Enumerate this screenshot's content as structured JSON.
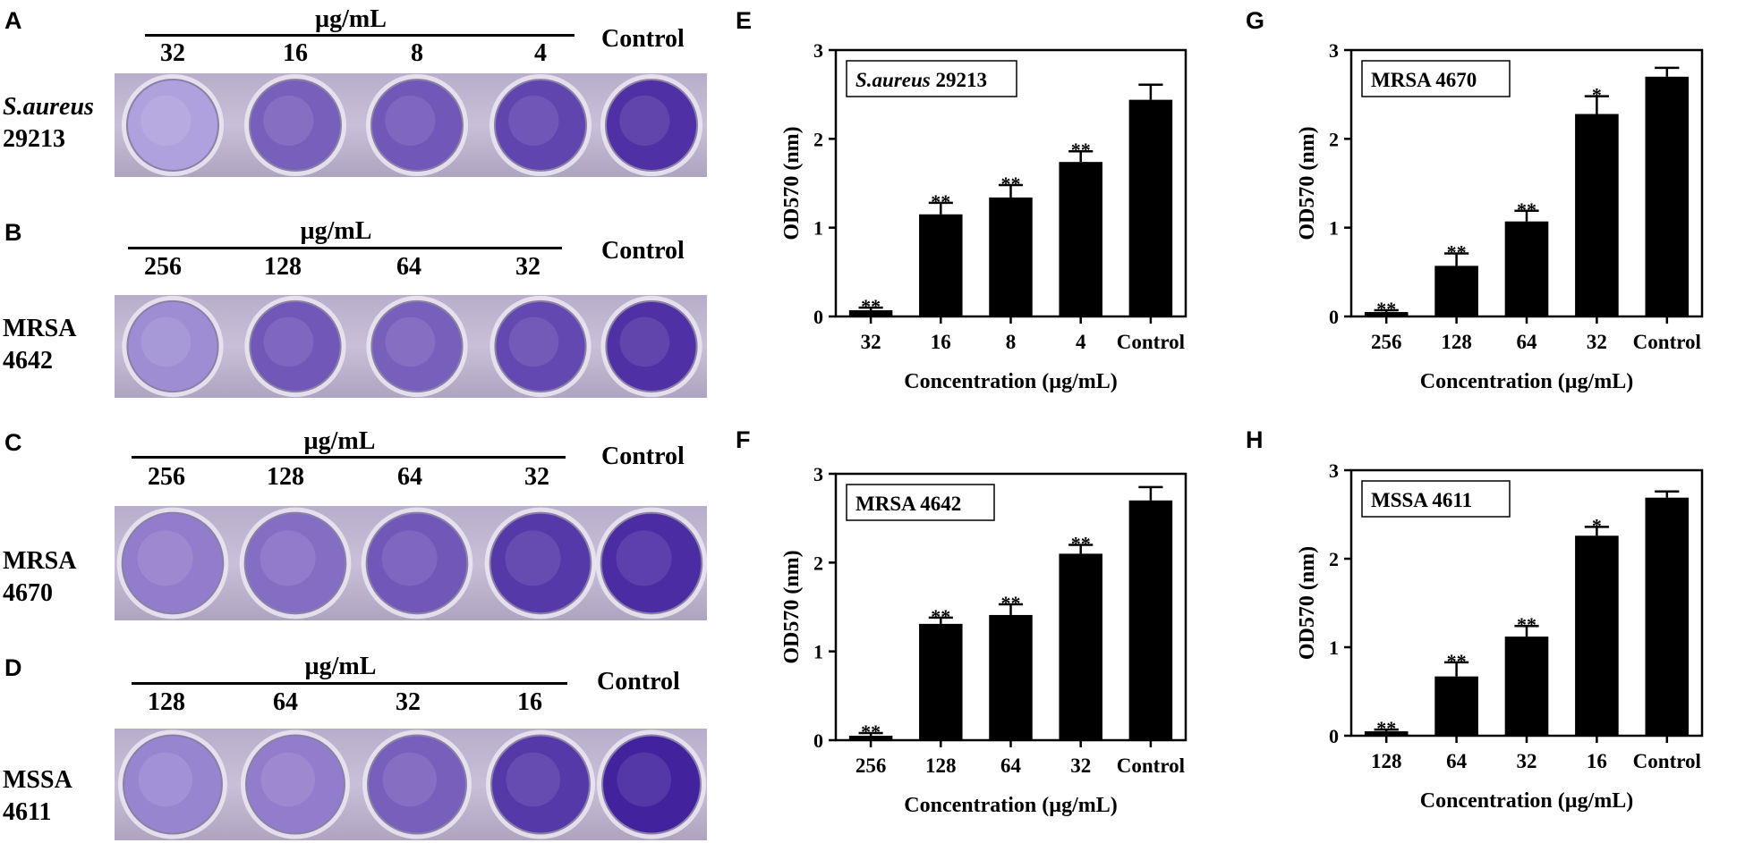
{
  "panels": [
    {
      "letter": "A",
      "unit": "µg/mL",
      "concentrations": [
        "32",
        "16",
        "8",
        "4"
      ],
      "control": "Control",
      "strain_lines": [
        "S.aureus",
        "29213"
      ],
      "strain_italic_first": true,
      "well_intensity": [
        0.12,
        0.55,
        0.6,
        0.72,
        0.85
      ]
    },
    {
      "letter": "B",
      "unit": "µg/mL",
      "concentrations": [
        "256",
        "128",
        "64",
        "32"
      ],
      "control": "Control",
      "strain_lines": [
        "MRSA",
        "4642"
      ],
      "strain_italic_first": false,
      "well_intensity": [
        0.25,
        0.6,
        0.55,
        0.7,
        0.85
      ]
    },
    {
      "letter": "C",
      "unit": "µg/mL",
      "concentrations": [
        "256",
        "128",
        "64",
        "32"
      ],
      "control": "Control",
      "strain_lines": [
        "MRSA",
        "4670"
      ],
      "strain_italic_first": false,
      "well_intensity": [
        0.35,
        0.45,
        0.6,
        0.8,
        0.88
      ]
    },
    {
      "letter": "D",
      "unit": "µg/mL",
      "concentrations": [
        "128",
        "64",
        "32",
        "16"
      ],
      "control": "Control",
      "strain_lines": [
        "MSSA",
        "4611"
      ],
      "strain_italic_first": false,
      "well_intensity": [
        0.3,
        0.35,
        0.55,
        0.8,
        0.95
      ]
    }
  ],
  "colors": {
    "plate_bg": "#c9bfd8",
    "stain_light": "#bfb3e6",
    "stain_dark": "#3c1a9a",
    "bar": "#000000"
  },
  "chart_data": [
    {
      "letter": "E",
      "type": "bar",
      "legend": "S.aureus 29213",
      "legend_italic": "S.aureus",
      "legend_rest": " 29213",
      "categories": [
        "32",
        "16",
        "8",
        "4",
        "Control"
      ],
      "values": [
        0.07,
        1.15,
        1.34,
        1.74,
        2.44
      ],
      "errors": [
        0.03,
        0.13,
        0.14,
        0.12,
        0.17
      ],
      "significance": [
        "**",
        "**",
        "**",
        "**",
        ""
      ],
      "xlabel": "Concentration (µg/mL)",
      "ylabel": "OD570 (nm)",
      "ylim": [
        0,
        3
      ],
      "yticks": [
        "0",
        "1",
        "2",
        "3"
      ]
    },
    {
      "letter": "F",
      "type": "bar",
      "legend": "MRSA 4642",
      "legend_italic": "",
      "legend_rest": "MRSA 4642",
      "categories": [
        "256",
        "128",
        "64",
        "32",
        "Control"
      ],
      "values": [
        0.05,
        1.31,
        1.41,
        2.1,
        2.7
      ],
      "errors": [
        0.03,
        0.07,
        0.12,
        0.1,
        0.15
      ],
      "significance": [
        "**",
        "**",
        "**",
        "**",
        ""
      ],
      "xlabel": "Concentration (µg/mL)",
      "ylabel": "OD570 (nm)",
      "ylim": [
        0,
        3
      ],
      "yticks": [
        "0",
        "1",
        "2",
        "3"
      ]
    },
    {
      "letter": "G",
      "type": "bar",
      "legend": "MRSA 4670",
      "legend_italic": "",
      "legend_rest": "MRSA 4670",
      "categories": [
        "256",
        "128",
        "64",
        "32",
        "Control"
      ],
      "values": [
        0.05,
        0.57,
        1.07,
        2.28,
        2.7
      ],
      "errors": [
        0.02,
        0.14,
        0.12,
        0.2,
        0.1
      ],
      "significance": [
        "**",
        "**",
        "**",
        "*",
        ""
      ],
      "xlabel": "Concentration (µg/mL)",
      "ylabel": "OD570 (nm)",
      "ylim": [
        0,
        3
      ],
      "yticks": [
        "0",
        "1",
        "2",
        "3"
      ]
    },
    {
      "letter": "H",
      "type": "bar",
      "legend": "MSSA 4611",
      "legend_italic": "",
      "legend_rest": "MSSA 4611",
      "categories": [
        "128",
        "64",
        "32",
        "16",
        "Control"
      ],
      "values": [
        0.05,
        0.67,
        1.12,
        2.26,
        2.69
      ],
      "errors": [
        0.02,
        0.16,
        0.12,
        0.1,
        0.07
      ],
      "significance": [
        "**",
        "**",
        "**",
        "*",
        ""
      ],
      "xlabel": "Concentration (µg/mL)",
      "ylabel": "OD570 (nm)",
      "ylim": [
        0,
        3
      ],
      "yticks": [
        "0",
        "1",
        "2",
        "3"
      ]
    }
  ]
}
